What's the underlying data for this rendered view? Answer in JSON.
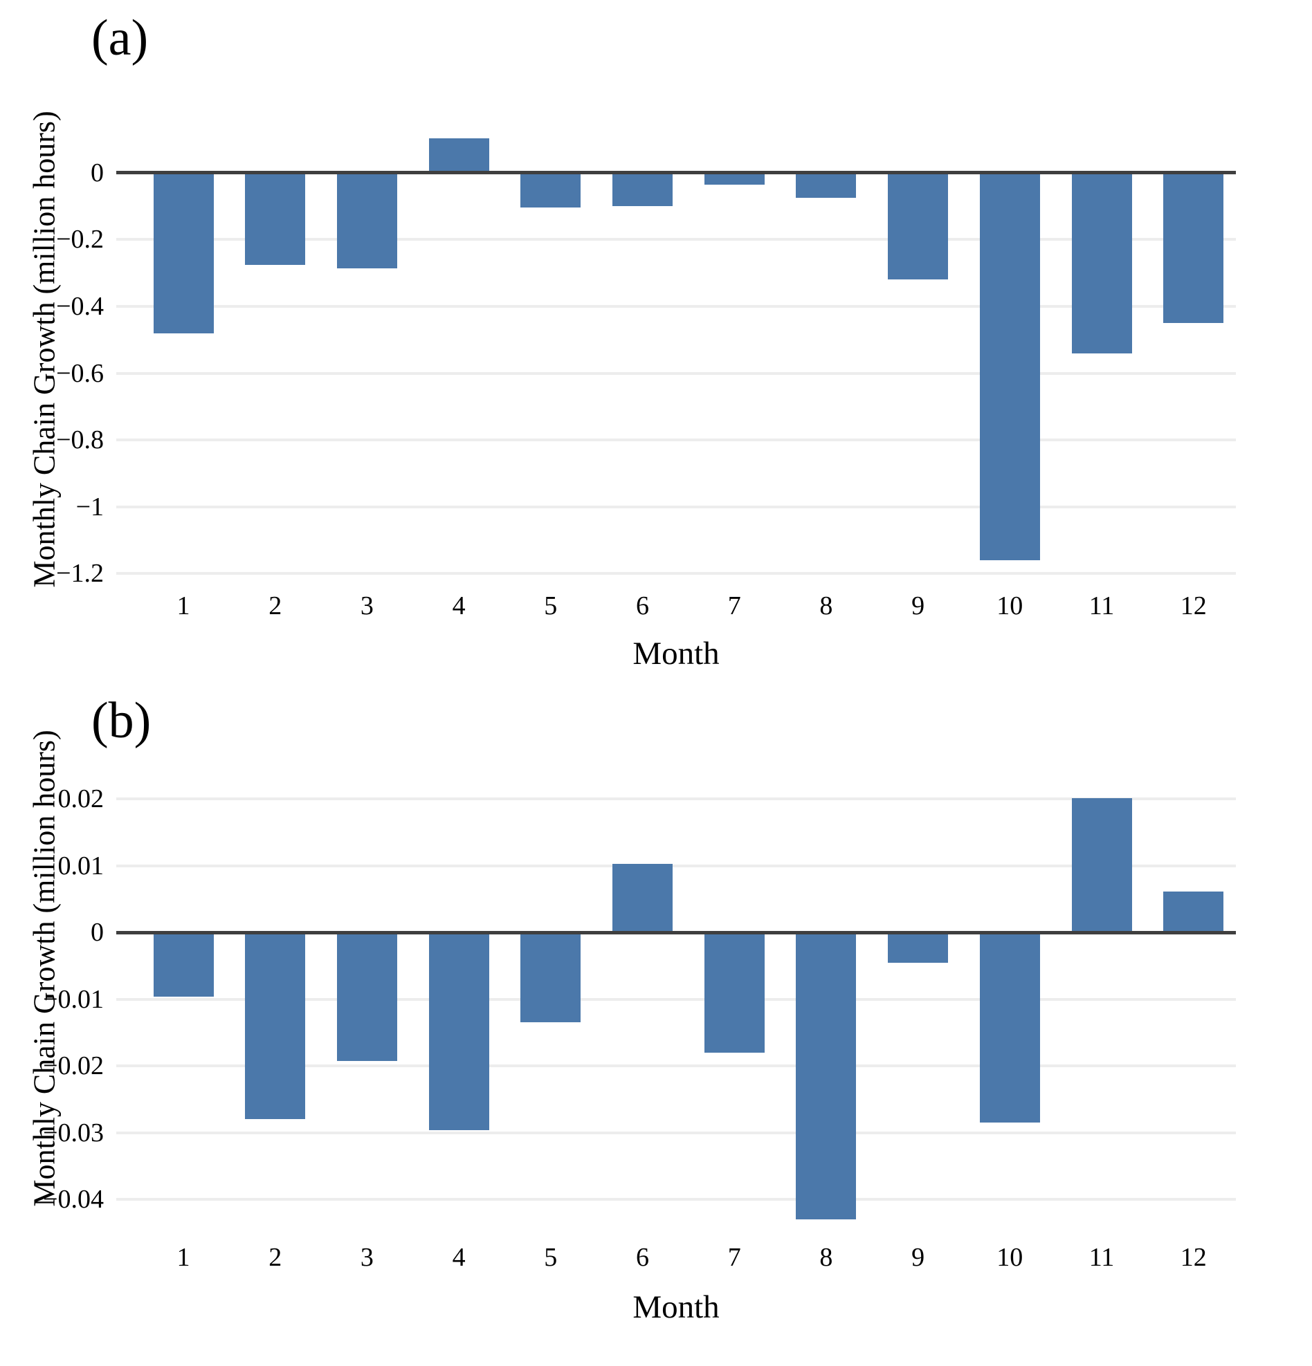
{
  "figure": {
    "panels": [
      {
        "label": "(a)",
        "ylabel": "Monthly Chain Growth (million hours)",
        "xlabel": "Month"
      },
      {
        "label": "(b)",
        "ylabel": "Monthly Chain Growth (million hours)",
        "xlabel": "Month"
      }
    ],
    "colors": {
      "bar": "#4b78aa",
      "axis_line": "#3f3f3f",
      "gridline": "#ededed",
      "text": "#000000",
      "background": "#ffffff"
    }
  },
  "chart_data": [
    {
      "type": "bar",
      "title": "(a)",
      "xlabel": "Month",
      "ylabel": "Monthly Chain Growth (million hours)",
      "categories": [
        "1",
        "2",
        "3",
        "4",
        "5",
        "6",
        "7",
        "8",
        "9",
        "10",
        "11",
        "12"
      ],
      "values": [
        -0.48,
        -0.275,
        -0.285,
        0.103,
        -0.104,
        -0.099,
        -0.036,
        -0.075,
        -0.32,
        -1.16,
        -0.54,
        -0.45
      ],
      "ylim": [
        -1.233,
        0.145
      ],
      "yticks": [
        {
          "label": "0",
          "value": 0
        },
        {
          "label": "−0.2",
          "value": -0.2
        },
        {
          "label": "−0.4",
          "value": -0.4
        },
        {
          "label": "−0.6",
          "value": -0.6
        },
        {
          "label": "−0.8",
          "value": -0.8
        },
        {
          "label": "−1",
          "value": -1.0
        },
        {
          "label": "−1.2",
          "value": -1.2
        }
      ],
      "grid": "horizontal",
      "legend": "none"
    },
    {
      "type": "bar",
      "title": "(b)",
      "xlabel": "Month",
      "ylabel": "Monthly Chain Growth (million hours)",
      "categories": [
        "1",
        "2",
        "3",
        "4",
        "5",
        "6",
        "7",
        "8",
        "9",
        "10",
        "11",
        "12"
      ],
      "values": [
        -0.0096,
        -0.028,
        -0.0193,
        -0.0296,
        -0.0135,
        0.0103,
        -0.018,
        -0.043,
        -0.0045,
        -0.0285,
        0.0201,
        0.0062
      ],
      "ylim": [
        -0.0458,
        0.0216
      ],
      "yticks": [
        {
          "label": "0.02",
          "value": 0.02
        },
        {
          "label": "0.01",
          "value": 0.01
        },
        {
          "label": "0",
          "value": 0
        },
        {
          "label": "−0.01",
          "value": -0.01
        },
        {
          "label": "−0.02",
          "value": -0.02
        },
        {
          "label": "−0.03",
          "value": -0.03
        },
        {
          "label": "−0.04",
          "value": -0.04
        }
      ],
      "grid": "horizontal",
      "legend": "none"
    }
  ]
}
